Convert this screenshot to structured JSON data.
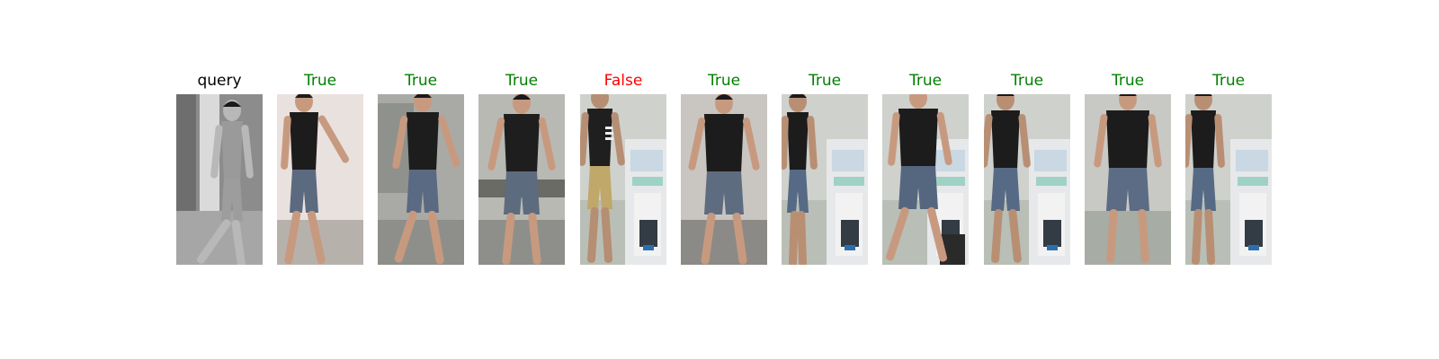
{
  "colors": {
    "query": "#000000",
    "true": "#008000",
    "false": "#ff0000"
  },
  "panels": [
    {
      "label": "query",
      "status": "query",
      "scene": "ir-hallway"
    },
    {
      "label": "True",
      "status": "true",
      "scene": "white-wall-side"
    },
    {
      "label": "True",
      "status": "true",
      "scene": "cabinet-side"
    },
    {
      "label": "True",
      "status": "true",
      "scene": "desk-front"
    },
    {
      "label": "False",
      "status": "false",
      "scene": "office-striped-shirt"
    },
    {
      "label": "True",
      "status": "true",
      "scene": "corridor-front"
    },
    {
      "label": "True",
      "status": "true",
      "scene": "office-side"
    },
    {
      "label": "True",
      "status": "true",
      "scene": "office-side-bin"
    },
    {
      "label": "True",
      "status": "true",
      "scene": "office-back"
    },
    {
      "label": "True",
      "status": "true",
      "scene": "office-back-wide"
    },
    {
      "label": "True",
      "status": "true",
      "scene": "office-back-narrow"
    }
  ]
}
